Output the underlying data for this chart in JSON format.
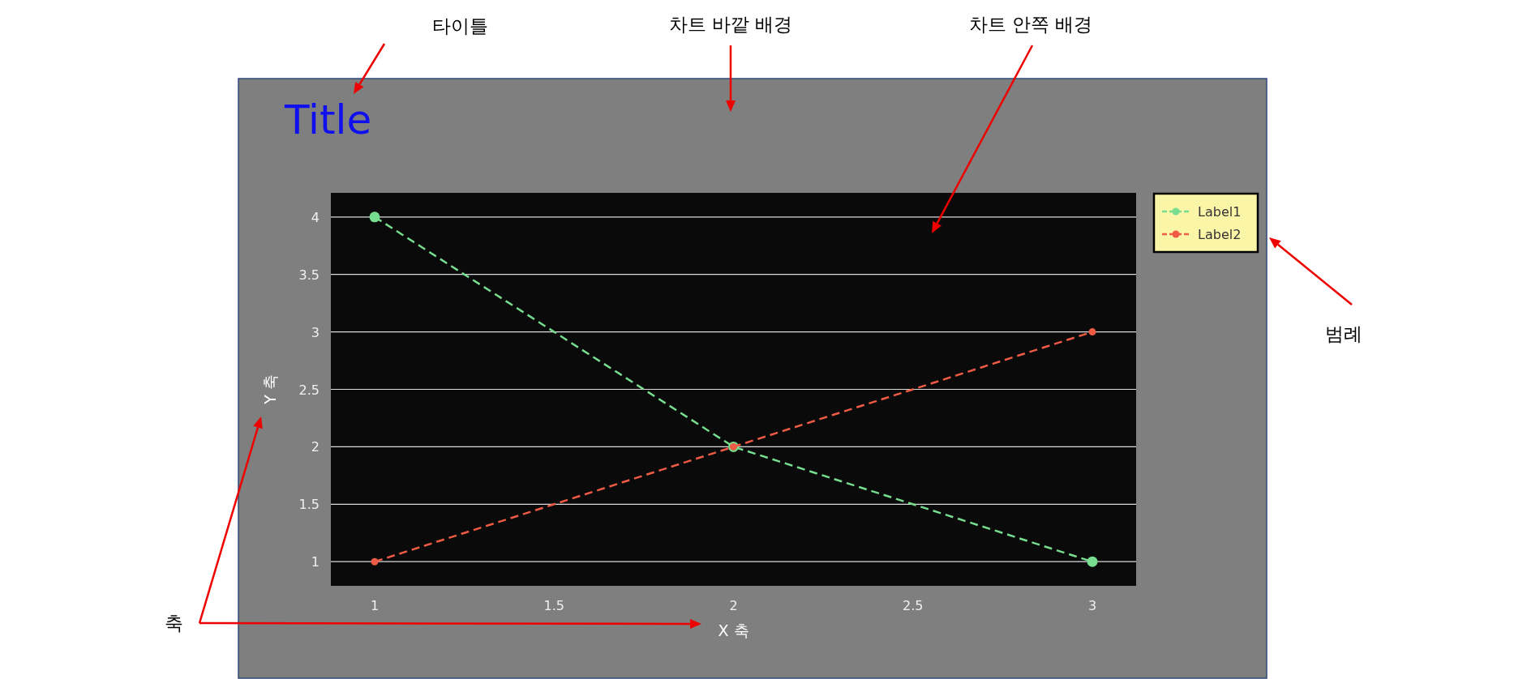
{
  "chart_data": {
    "type": "line",
    "title": "Title",
    "xlabel": "X 축",
    "ylabel": "Y 축",
    "x": [
      1,
      2,
      3
    ],
    "series": [
      {
        "name": "Label1",
        "color": "#77dd8f",
        "values": [
          4,
          2,
          1
        ]
      },
      {
        "name": "Label2",
        "color": "#ef5b45",
        "values": [
          1,
          2,
          3
        ]
      }
    ],
    "xlim": [
      0.878,
      3.122
    ],
    "ylim": [
      0.79,
      4.21
    ],
    "xticks": [
      1,
      1.5,
      2,
      2.5,
      3
    ],
    "yticks": [
      1,
      1.5,
      2,
      2.5,
      3,
      3.5,
      4
    ],
    "grid": "y",
    "legend": "top right",
    "marker": "circle",
    "line_style": "dashed",
    "annotations": [
      "타이틀",
      "차트 바깥 배경",
      "차트 안쪽 배경",
      "범례",
      "축"
    ]
  }
}
